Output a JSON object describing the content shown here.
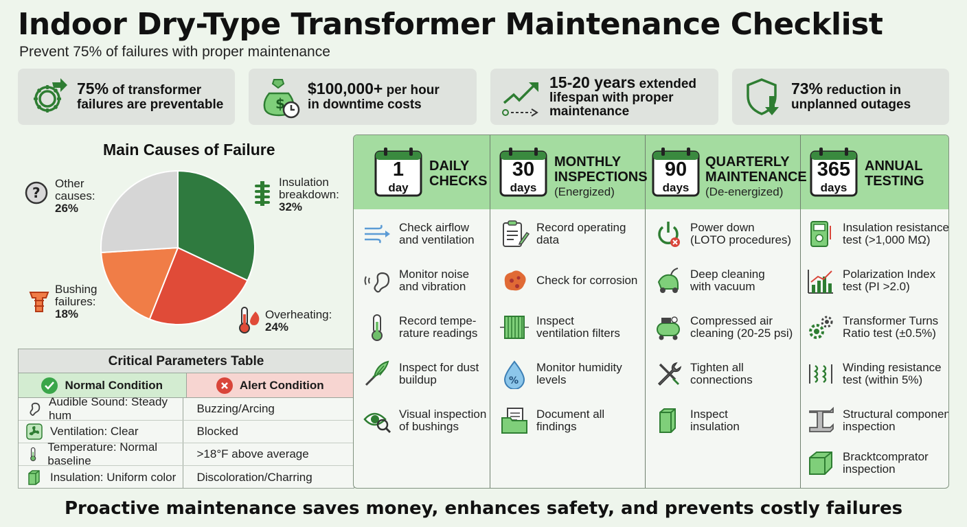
{
  "header": {
    "title": "Indoor Dry-Type Transformer Maintenance Checklist",
    "subtitle": "Prevent 75% of failures with proper maintenance"
  },
  "stats": [
    {
      "icon": "gear-refresh-icon",
      "highlight": "75%",
      "line1_rest": " of transformer",
      "line2": "failures are preventable"
    },
    {
      "icon": "money-bag-clock-icon",
      "highlight": "$100,000+",
      "line1_rest": " per hour",
      "line2": "in downtime costs"
    },
    {
      "icon": "trend-up-arrow-icon",
      "highlight": "15-20 years",
      "line1_rest": " extended",
      "line2": "lifespan with proper",
      "line3": "maintenance"
    },
    {
      "icon": "shield-down-arrow-icon",
      "highlight": "73%",
      "line1_rest": " reduction in",
      "line2": "unplanned outages"
    }
  ],
  "colors": {
    "insulation": "#2f7a3f",
    "overheating": "#e04b38",
    "bushing": "#f07d47",
    "other": "#d6d6d6",
    "header_band": "#a4dca0",
    "alert": "#d9453a",
    "normal": "#3aa64a"
  },
  "chart_data": {
    "type": "pie",
    "title": "Main Causes of Failure",
    "slices": [
      {
        "label": "Insulation breakdown",
        "label_line1": "Insulation",
        "label_line2": "breakdown:",
        "value": 32,
        "value_text": "32%",
        "icon": "coil-icon"
      },
      {
        "label": "Overheating",
        "label_line1": "Overheating:",
        "value": 24,
        "value_text": "24%",
        "icon": "thermometer-fire-icon"
      },
      {
        "label": "Bushing failures",
        "label_line1": "Bushing",
        "label_line2": "failures:",
        "value": 18,
        "value_text": "18%",
        "icon": "bushing-icon"
      },
      {
        "label": "Other causes",
        "label_line1": "Other",
        "label_line2": "causes:",
        "value": 26,
        "value_text": "26%",
        "icon": "question-icon"
      }
    ]
  },
  "params_table": {
    "title": "Critical Parameters Table",
    "normal_header": "Normal Condition",
    "alert_header": "Alert Condition",
    "rows": [
      {
        "icon": "ear-icon",
        "normal": "Audible Sound: Steady hum",
        "alert": "Buzzing/Arcing"
      },
      {
        "icon": "fan-icon",
        "normal": "Ventilation: Clear",
        "alert": "Blocked"
      },
      {
        "icon": "thermometer-icon",
        "normal": "Temperature: Normal baseline",
        "alert": ">18°F above average"
      },
      {
        "icon": "insulation-block-icon",
        "normal": "Insulation: Uniform color",
        "alert": "Discoloration/Charring"
      }
    ]
  },
  "schedule": [
    {
      "num": "1",
      "unit": "day",
      "title1": "DAILY",
      "title2": "CHECKS",
      "subtitle": "",
      "tasks": [
        {
          "icon": "airflow-icon",
          "line1": "Check airflow",
          "line2": "and ventilation"
        },
        {
          "icon": "ear-sound-icon",
          "line1": "Monitor noise",
          "line2": "and vibration"
        },
        {
          "icon": "thermometer-icon",
          "line1": "Record tempe-",
          "line2": "rature readings"
        },
        {
          "icon": "duster-icon",
          "line1": "Inspect for dust",
          "line2": "buildup"
        },
        {
          "icon": "eye-magnifier-icon",
          "line1": "Visual inspection",
          "line2": "of bushings"
        }
      ]
    },
    {
      "num": "30",
      "unit": "days",
      "title1": "MONTHLY",
      "title2": "INSPECTIONS",
      "subtitle": "(Energized)",
      "tasks": [
        {
          "icon": "clipboard-pencil-icon",
          "line1": "Record operating",
          "line2": "data"
        },
        {
          "icon": "corrosion-icon",
          "line1": "Check for corrosion",
          "line2": ""
        },
        {
          "icon": "filter-icon",
          "line1": "Inspect",
          "line2": "ventilation filters"
        },
        {
          "icon": "humidity-drop-icon",
          "line1": "Monitor humidity",
          "line2": "levels"
        },
        {
          "icon": "folder-document-icon",
          "line1": "Document all",
          "line2": "findings"
        }
      ]
    },
    {
      "num": "90",
      "unit": "days",
      "title1": "QUARTERLY",
      "title2": "MAINTENANCE",
      "subtitle": "(De-energized)",
      "tasks": [
        {
          "icon": "power-off-icon",
          "line1": "Power down",
          "line2": "(LOTO procedures)"
        },
        {
          "icon": "vacuum-icon",
          "line1": "Deep cleaning",
          "line2": "with vacuum"
        },
        {
          "icon": "air-compressor-icon",
          "line1": "Compressed air",
          "line2": "cleaning (20-25 psi)"
        },
        {
          "icon": "wrench-screwdriver-icon",
          "line1": "Tighten all",
          "line2": "connections"
        },
        {
          "icon": "insulation-block-icon",
          "line1": "Inspect",
          "line2": "insulation"
        }
      ]
    },
    {
      "num": "365",
      "unit": "days",
      "title1": "ANNUAL",
      "title2": "TESTING",
      "subtitle": "",
      "tasks": [
        {
          "icon": "multimeter-icon",
          "line1": "Insulation resistance",
          "line2": "test (>1,000 MΩ)"
        },
        {
          "icon": "bar-chart-icon",
          "line1": "Polarization Index",
          "line2": "test (PI >2.0)"
        },
        {
          "icon": "gears-icon",
          "line1": "Transformer Turns",
          "line2": "Ratio test (±0.5%)"
        },
        {
          "icon": "winding-icon",
          "line1": "Winding resistance",
          "line2": "test (within 5%)"
        },
        {
          "icon": "i-beam-icon",
          "line1": "Structural component",
          "line2": "inspection"
        },
        {
          "icon": "bracket-icon",
          "line1": "Bracktcomprator",
          "line2": "inspection"
        }
      ]
    }
  ],
  "footer": "Proactive maintenance saves money, enhances safety, and prevents costly failures"
}
